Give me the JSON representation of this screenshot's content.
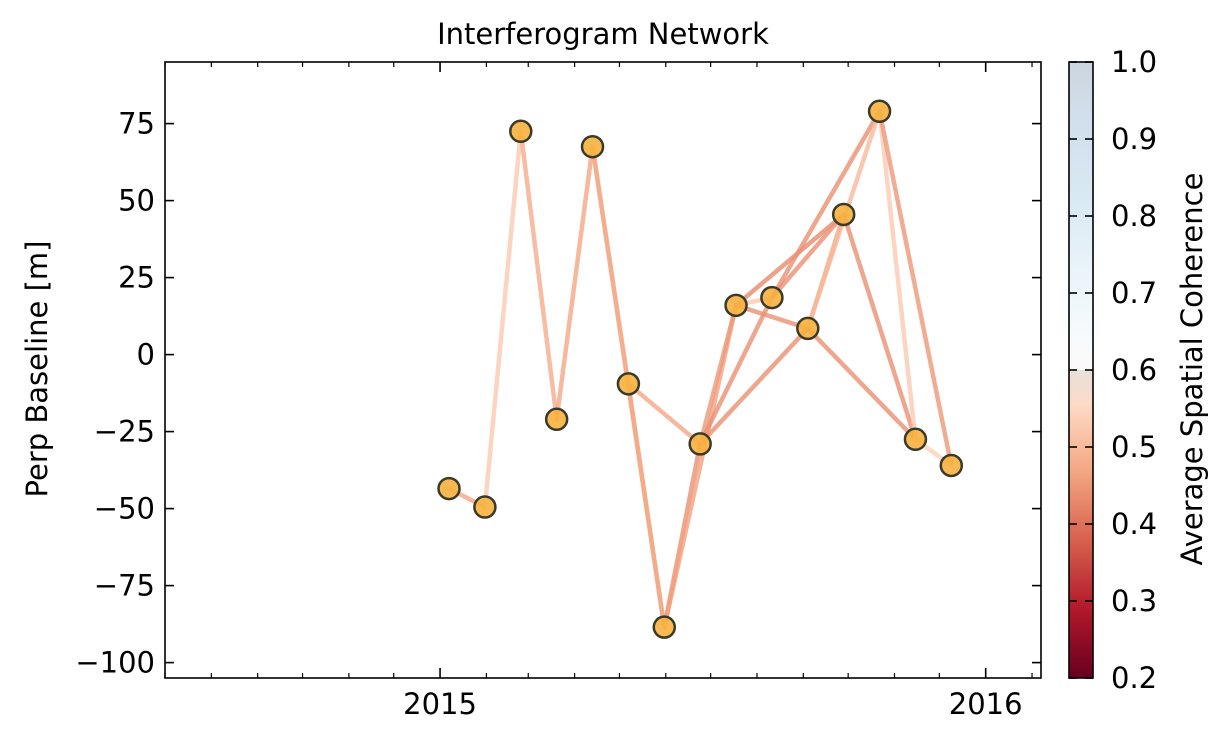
{
  "chart_data": {
    "type": "network",
    "title": "Interferogram Network",
    "xlabel": "",
    "ylabel": "Perp Baseline [m]",
    "xlim": [
      "2014-07-01",
      "2016-02-07"
    ],
    "ylim": [
      -105,
      95
    ],
    "x_ticks": [
      "2015-01-01",
      "2016-01-01"
    ],
    "x_tick_labels": [
      "2015",
      "2016"
    ],
    "y_ticks": [
      -100,
      -75,
      -50,
      -25,
      0,
      25,
      50,
      75
    ],
    "y_tick_labels": [
      "−100",
      "−75",
      "−50",
      "−25",
      "0",
      "25",
      "50",
      "75"
    ],
    "grid": false,
    "colorbar": {
      "label": "Average Spatial Coherence",
      "range": [
        0.2,
        1.0
      ],
      "ticks": [
        0.2,
        0.3,
        0.4,
        0.5,
        0.6,
        0.7,
        0.8,
        0.9,
        1.0
      ],
      "tick_labels": [
        "0.2",
        "0.3",
        "0.4",
        "0.5",
        "0.6",
        "0.7",
        "0.8",
        "0.9",
        "1.0"
      ],
      "colormap": "RdBu, with the 0.6–1.0 band shown faded",
      "colors": [
        "#67001f",
        "#b2182b",
        "#d6604d",
        "#f4a582",
        "#fddbc7",
        "#d1e5f0",
        "#92c5de",
        "#4393c3",
        "#2166ac",
        "#053061"
      ]
    },
    "acquisitions": [
      {
        "date": "2015-01-07",
        "bperp": -43.5
      },
      {
        "date": "2015-01-31",
        "bperp": -49.5
      },
      {
        "date": "2015-02-24",
        "bperp": 72.5
      },
      {
        "date": "2015-03-20",
        "bperp": -21.0
      },
      {
        "date": "2015-04-13",
        "bperp": 67.5
      },
      {
        "date": "2015-05-07",
        "bperp": -9.5
      },
      {
        "date": "2015-05-31",
        "bperp": -88.5
      },
      {
        "date": "2015-06-24",
        "bperp": -29.0
      },
      {
        "date": "2015-07-18",
        "bperp": 16.0
      },
      {
        "date": "2015-08-11",
        "bperp": 18.5
      },
      {
        "date": "2015-09-04",
        "bperp": 8.5
      },
      {
        "date": "2015-09-28",
        "bperp": 45.5
      },
      {
        "date": "2015-10-22",
        "bperp": 79.0
      },
      {
        "date": "2015-11-15",
        "bperp": -27.5
      },
      {
        "date": "2015-12-09",
        "bperp": -36.0
      }
    ],
    "point_style": {
      "fill": "#f7b13f",
      "edge": "#3a3a2a"
    },
    "interferograms": [
      {
        "ref": "2015-01-07",
        "sec": "2015-01-31",
        "coherence": 0.47
      },
      {
        "ref": "2015-01-31",
        "sec": "2015-02-24",
        "coherence": 0.53
      },
      {
        "ref": "2015-02-24",
        "sec": "2015-03-20",
        "coherence": 0.48
      },
      {
        "ref": "2015-03-20",
        "sec": "2015-04-13",
        "coherence": 0.47
      },
      {
        "ref": "2015-04-13",
        "sec": "2015-05-07",
        "coherence": 0.5
      },
      {
        "ref": "2015-04-13",
        "sec": "2015-05-31",
        "coherence": 0.47
      },
      {
        "ref": "2015-05-07",
        "sec": "2015-06-24",
        "coherence": 0.47
      },
      {
        "ref": "2015-05-07",
        "sec": "2015-05-31",
        "coherence": 0.47
      },
      {
        "ref": "2015-05-31",
        "sec": "2015-06-24",
        "coherence": 0.44
      },
      {
        "ref": "2015-05-31",
        "sec": "2015-07-18",
        "coherence": 0.46
      },
      {
        "ref": "2015-06-24",
        "sec": "2015-07-18",
        "coherence": 0.45
      },
      {
        "ref": "2015-06-24",
        "sec": "2015-08-11",
        "coherence": 0.44
      },
      {
        "ref": "2015-06-24",
        "sec": "2015-09-04",
        "coherence": 0.44
      },
      {
        "ref": "2015-07-18",
        "sec": "2015-08-11",
        "coherence": 0.53
      },
      {
        "ref": "2015-07-18",
        "sec": "2015-09-04",
        "coherence": 0.44
      },
      {
        "ref": "2015-07-18",
        "sec": "2015-09-28",
        "coherence": 0.43
      },
      {
        "ref": "2015-08-11",
        "sec": "2015-09-28",
        "coherence": 0.44
      },
      {
        "ref": "2015-08-11",
        "sec": "2015-10-22",
        "coherence": 0.44
      },
      {
        "ref": "2015-09-04",
        "sec": "2015-09-28",
        "coherence": 0.47
      },
      {
        "ref": "2015-09-04",
        "sec": "2015-10-22",
        "coherence": 0.5
      },
      {
        "ref": "2015-09-04",
        "sec": "2015-11-15",
        "coherence": 0.44
      },
      {
        "ref": "2015-09-28",
        "sec": "2015-11-15",
        "coherence": 0.44
      },
      {
        "ref": "2015-10-22",
        "sec": "2015-11-15",
        "coherence": 0.53
      },
      {
        "ref": "2015-10-22",
        "sec": "2015-12-09",
        "coherence": 0.45
      },
      {
        "ref": "2015-11-15",
        "sec": "2015-12-09",
        "coherence": 0.54
      }
    ]
  }
}
